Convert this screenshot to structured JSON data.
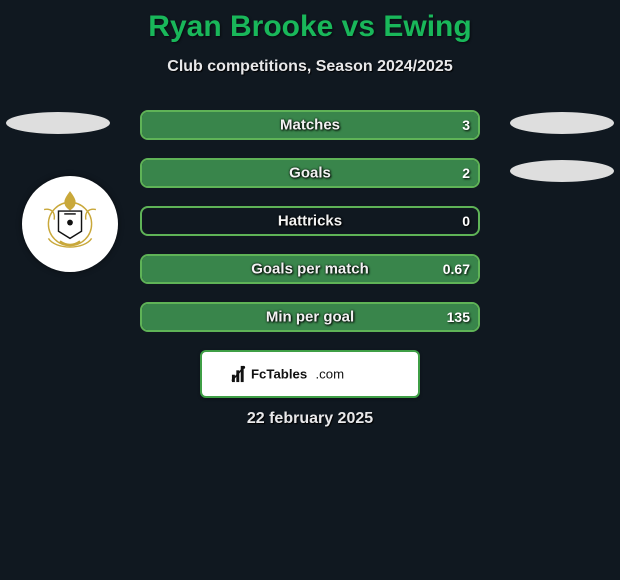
{
  "title": "Ryan Brooke vs Ewing",
  "subtitle": "Club competitions, Season 2024/2025",
  "brand_logo_text": "FcTables.com",
  "date_text": "22 february 2025",
  "colors": {
    "title": "#19b75a",
    "bar_border": "#5fb357",
    "bar_fill": "#39854b",
    "background": "#101820",
    "box_bg": "#ffffff"
  },
  "rows": [
    {
      "label": "Matches",
      "left": "",
      "right": "3",
      "left_pct": 0,
      "right_pct": 100,
      "show_left_side": true,
      "show_right_side": true
    },
    {
      "label": "Goals",
      "left": "",
      "right": "2",
      "left_pct": 0,
      "right_pct": 100,
      "show_left_side": false,
      "show_right_side": true
    },
    {
      "label": "Hattricks",
      "left": "",
      "right": "0",
      "left_pct": 0,
      "right_pct": 0,
      "show_left_side": false,
      "show_right_side": false
    },
    {
      "label": "Goals per match",
      "left": "",
      "right": "0.67",
      "left_pct": 0,
      "right_pct": 100,
      "show_left_side": false,
      "show_right_side": false
    },
    {
      "label": "Min per goal",
      "left": "",
      "right": "135",
      "left_pct": 0,
      "right_pct": 100,
      "show_left_side": false,
      "show_right_side": false
    }
  ]
}
